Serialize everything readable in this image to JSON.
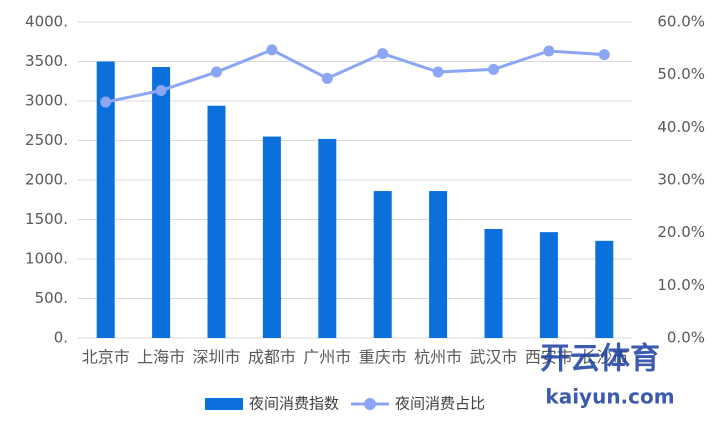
{
  "chart_data": {
    "type": "bar",
    "categories": [
      "北京市",
      "上海市",
      "深圳市",
      "成都市",
      "广州市",
      "重庆市",
      "杭州市",
      "武汉市",
      "西安市",
      "长沙市"
    ],
    "series": [
      {
        "name": "夜间消费指数",
        "type": "bar",
        "color": "#0b6fdc",
        "values": [
          3500,
          3430,
          2940,
          2550,
          2520,
          1860,
          1860,
          1380,
          1340,
          1230
        ]
      },
      {
        "name": "夜间消费占比",
        "type": "line",
        "axis": "y2",
        "color": "#8aa6f4",
        "values": [
          44.8,
          47.0,
          50.5,
          54.7,
          49.3,
          54.0,
          50.5,
          51.0,
          54.5,
          53.8
        ]
      }
    ],
    "ylim": [
      0,
      4000
    ],
    "yticks": [
      {
        "value": 0,
        "label": "0."
      },
      {
        "value": 500,
        "label": "500."
      },
      {
        "value": 1000,
        "label": "1000."
      },
      {
        "value": 1500,
        "label": "1500."
      },
      {
        "value": 2000,
        "label": "2000."
      },
      {
        "value": 2500,
        "label": "2500."
      },
      {
        "value": 3000,
        "label": "3000."
      },
      {
        "value": 3500,
        "label": "3500."
      },
      {
        "value": 4000,
        "label": "4000."
      }
    ],
    "y2lim": [
      0,
      60
    ],
    "y2ticks": [
      {
        "value": 0,
        "label": "0.0%"
      },
      {
        "value": 10,
        "label": "10.0%"
      },
      {
        "value": 20,
        "label": "20.0%"
      },
      {
        "value": 30,
        "label": "30.0%"
      },
      {
        "value": 40,
        "label": "40.0%"
      },
      {
        "value": 50,
        "label": "50.0%"
      },
      {
        "value": 60,
        "label": "60.0%"
      }
    ],
    "grid": true,
    "legend": "bottom",
    "watermark": {
      "brand": "开云体育",
      "site": "kaiyun.com"
    }
  }
}
